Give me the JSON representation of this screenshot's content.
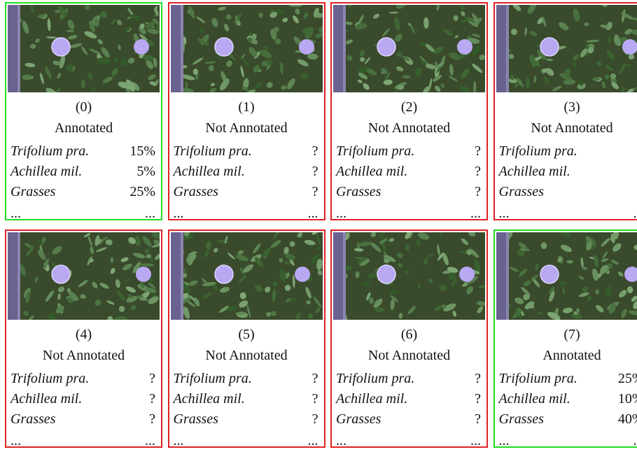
{
  "panels": [
    {
      "index": "(0)",
      "status": "Annotated",
      "annotated": true,
      "rows": [
        {
          "name": "Trifolium pra.",
          "value": "15%"
        },
        {
          "name": "Achillea mil.",
          "value": "5%"
        },
        {
          "name": "Grasses",
          "value": "25%"
        }
      ],
      "more": [
        "...",
        "..."
      ]
    },
    {
      "index": "(1)",
      "status": "Not Annotated",
      "annotated": false,
      "rows": [
        {
          "name": "Trifolium pra.",
          "value": "?"
        },
        {
          "name": "Achillea mil.",
          "value": "?"
        },
        {
          "name": "Grasses",
          "value": "?"
        }
      ],
      "more": [
        "...",
        "..."
      ]
    },
    {
      "index": "(2)",
      "status": "Not Annotated",
      "annotated": false,
      "rows": [
        {
          "name": "Trifolium pra.",
          "value": "?"
        },
        {
          "name": "Achillea mil.",
          "value": "?"
        },
        {
          "name": "Grasses",
          "value": "?"
        }
      ],
      "more": [
        "...",
        "..."
      ]
    },
    {
      "index": "(3)",
      "status": "Not Annotated",
      "annotated": false,
      "rows": [
        {
          "name": "Trifolium pra.",
          "value": "?"
        },
        {
          "name": "Achillea mil.",
          "value": "?"
        },
        {
          "name": "Grasses",
          "value": "?"
        }
      ],
      "more": [
        "...",
        "..."
      ]
    },
    {
      "index": "(4)",
      "status": "Not Annotated",
      "annotated": false,
      "rows": [
        {
          "name": "Trifolium pra.",
          "value": "?"
        },
        {
          "name": "Achillea mil.",
          "value": "?"
        },
        {
          "name": "Grasses",
          "value": "?"
        }
      ],
      "more": [
        "...",
        "..."
      ]
    },
    {
      "index": "(5)",
      "status": "Not Annotated",
      "annotated": false,
      "rows": [
        {
          "name": "Trifolium pra.",
          "value": "?"
        },
        {
          "name": "Achillea mil.",
          "value": "?"
        },
        {
          "name": "Grasses",
          "value": "?"
        }
      ],
      "more": [
        "...",
        "..."
      ]
    },
    {
      "index": "(6)",
      "status": "Not Annotated",
      "annotated": false,
      "rows": [
        {
          "name": "Trifolium pra.",
          "value": "?"
        },
        {
          "name": "Achillea mil.",
          "value": "?"
        },
        {
          "name": "Grasses",
          "value": "?"
        }
      ],
      "more": [
        "...",
        "..."
      ]
    },
    {
      "index": "(7)",
      "status": "Annotated",
      "annotated": true,
      "rows": [
        {
          "name": "Trifolium pra.",
          "value": "25%"
        },
        {
          "name": "Achillea mil.",
          "value": "10%"
        },
        {
          "name": "Grasses",
          "value": "40%"
        }
      ],
      "more": [
        "...",
        "..."
      ]
    }
  ]
}
